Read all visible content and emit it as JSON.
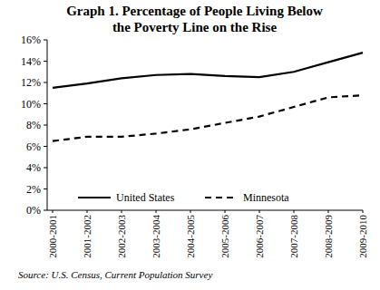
{
  "chart_data": {
    "type": "line",
    "title": "Graph 1. Percentage of People Living Below the Poverty Line on the Rise",
    "source": "Source: U.S. Census, Current Population Survey",
    "categories": [
      "2000-2001",
      "2001-2002",
      "2002-2003",
      "2003-2004",
      "2004-2005",
      "2005-2006",
      "2006-2007",
      "2007-2008",
      "2008-2009",
      "2009-2010"
    ],
    "series": [
      {
        "name": "United States",
        "color": "#000000",
        "line_style": "solid",
        "values": [
          11.5,
          11.9,
          12.4,
          12.7,
          12.8,
          12.6,
          12.5,
          13.0,
          13.9,
          14.8
        ]
      },
      {
        "name": "Minnesota",
        "color": "#000000",
        "line_style": "dashed",
        "values": [
          6.5,
          6.9,
          6.9,
          7.2,
          7.6,
          8.2,
          8.8,
          9.7,
          10.6,
          10.8
        ]
      }
    ],
    "ylim": [
      0,
      16
    ],
    "yticks": [
      {
        "value": 0,
        "label": "0%"
      },
      {
        "value": 2,
        "label": "2%"
      },
      {
        "value": 4,
        "label": "4%"
      },
      {
        "value": 6,
        "label": "6%"
      },
      {
        "value": 8,
        "label": "8%"
      },
      {
        "value": 10,
        "label": "10%"
      },
      {
        "value": 12,
        "label": "12%"
      },
      {
        "value": 14,
        "label": "14%"
      },
      {
        "value": 16,
        "label": "16%"
      }
    ],
    "grid": false,
    "legend": "lower center"
  }
}
